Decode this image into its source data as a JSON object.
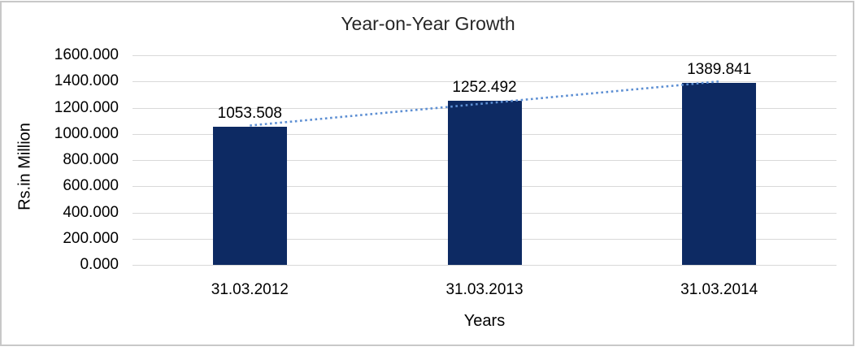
{
  "chart": {
    "title": "Year-on-Year Growth",
    "y_axis_title": "Rs.in Million",
    "x_axis_title": "Years",
    "colors": {
      "bar": "#0d2a63",
      "trendline": "#5d8fd3",
      "gridline": "#d9d9d9",
      "frame_border": "#c8c8c8",
      "text": "#000000"
    }
  },
  "chart_data": {
    "type": "bar",
    "title": "Year-on-Year Growth",
    "xlabel": "Years",
    "ylabel": "Rs.in Million",
    "categories": [
      "31.03.2012",
      "31.03.2013",
      "31.03.2014"
    ],
    "values": [
      1053.508,
      1252.492,
      1389.841
    ],
    "data_labels": [
      "1053.508",
      "1252.492",
      "1389.841"
    ],
    "ylim": [
      0,
      1600
    ],
    "ytick_step": 200,
    "ytick_labels": [
      "0.000",
      "200.000",
      "400.000",
      "600.000",
      "800.000",
      "1000.000",
      "1200.000",
      "1400.000",
      "1600.000"
    ],
    "grid": true,
    "legend": false,
    "trendline": "linear-dotted"
  }
}
